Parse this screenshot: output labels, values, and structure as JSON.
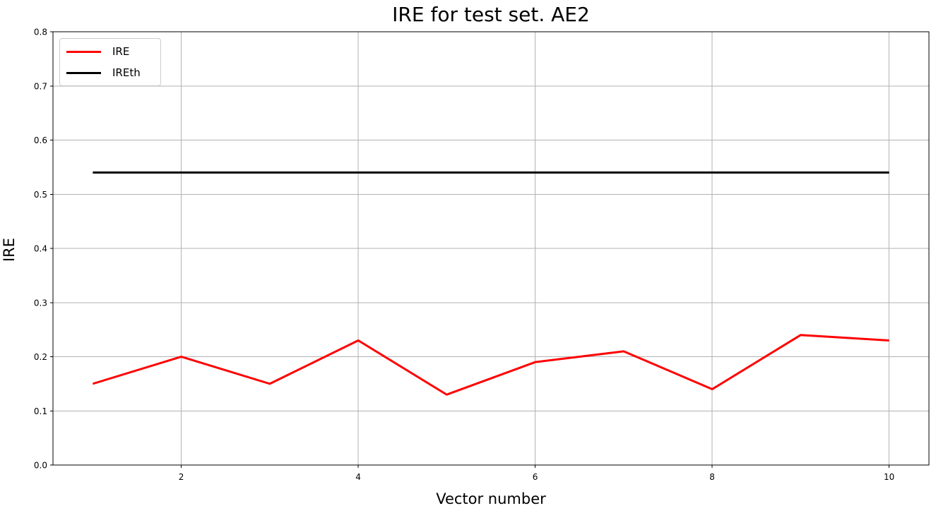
{
  "chart_data": {
    "type": "line",
    "title": "IRE for test set. AE2",
    "xlabel": "Vector number",
    "ylabel": "IRE",
    "x": [
      1,
      2,
      3,
      4,
      5,
      6,
      7,
      8,
      9,
      10
    ],
    "series": [
      {
        "name": "IRE",
        "color": "#ff0000",
        "values": [
          0.15,
          0.2,
          0.15,
          0.23,
          0.13,
          0.19,
          0.21,
          0.14,
          0.24,
          0.23
        ]
      },
      {
        "name": "IREth",
        "color": "#000000",
        "values": [
          0.54,
          0.54,
          0.54,
          0.54,
          0.54,
          0.54,
          0.54,
          0.54,
          0.54,
          0.54
        ]
      }
    ],
    "xlim": [
      0.55,
      10.45
    ],
    "ylim": [
      0,
      0.8
    ],
    "xticks": [
      2,
      4,
      6,
      8,
      10
    ],
    "xtick_labels": [
      "2",
      "4",
      "6",
      "8",
      "10"
    ],
    "yticks": [
      0.0,
      0.1,
      0.2,
      0.3,
      0.4,
      0.5,
      0.6,
      0.7,
      0.8
    ],
    "ytick_labels": [
      "0.0",
      "0.1",
      "0.2",
      "0.3",
      "0.4",
      "0.5",
      "0.6",
      "0.7",
      "0.8"
    ],
    "grid": true,
    "grid_color": "#b2b2b2",
    "axis_color": "#000000",
    "background": "#ffffff",
    "legend_position": "upper-left"
  }
}
